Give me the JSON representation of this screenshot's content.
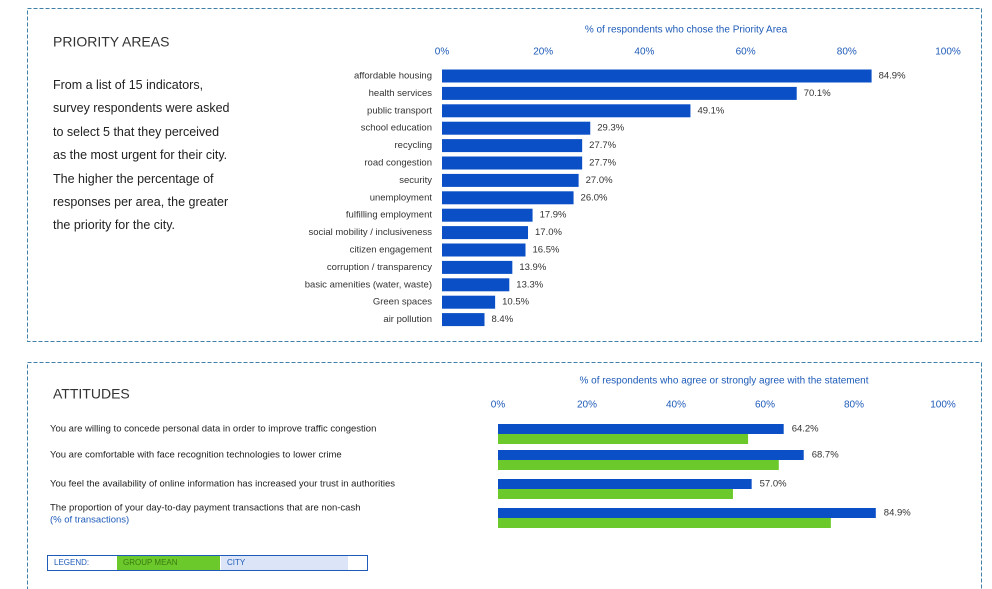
{
  "chart_data": [
    {
      "type": "barh",
      "title": "PRIORITY AREAS",
      "description": "From a list of 15 indicators, survey respondents were asked to select 5 that they perceived as the most urgent for their city. The higher the percentage of responses per area, the greater the priority for the city.",
      "x_label": "% of respondents who chose the Priority Area",
      "categories": [
        "affordable housing",
        "health services",
        "public transport",
        "school education",
        "recycling",
        "road congestion",
        "security",
        "unemployment",
        "fulfilling employment",
        "social mobility / inclusiveness",
        "citizen engagement",
        "corruption / transparency",
        "basic amenities (water, waste)",
        "Green spaces",
        "air pollution"
      ],
      "values": [
        84.9,
        70.1,
        49.1,
        29.3,
        27.7,
        27.7,
        27.0,
        26.0,
        17.9,
        17.0,
        16.5,
        13.9,
        13.3,
        10.5,
        8.4
      ],
      "value_labels": [
        "84.9%",
        "70.1%",
        "49.1%",
        "29.3%",
        "27.7%",
        "27.7%",
        "27.0%",
        "26.0%",
        "17.9%",
        "17.0%",
        "16.5%",
        "13.9%",
        "13.3%",
        "10.5%",
        "8.4%"
      ],
      "color": "#0b4fc6",
      "xlim": [
        0,
        100
      ],
      "xticks": [
        {
          "value": 0,
          "label": "0%"
        },
        {
          "value": 20,
          "label": "20%"
        },
        {
          "value": 40,
          "label": "40%"
        },
        {
          "value": 60,
          "label": "60%"
        },
        {
          "value": 80,
          "label": "80%"
        },
        {
          "value": 100,
          "label": "100%"
        }
      ]
    },
    {
      "type": "barh_grouped",
      "title": "ATTITUDES",
      "x_label": "% of respondents who agree or strongly agree with the statement",
      "categories": [
        "You are willing to concede personal data in order to improve traffic congestion",
        "You are comfortable with face recognition technologies to lower crime",
        "You feel the availability of online information has increased your trust in authorities",
        "The proportion of your day-to-day payment transactions that are non-cash"
      ],
      "category_notes": [
        null,
        null,
        null,
        "(% of transactions)"
      ],
      "series": [
        {
          "name": "CITY",
          "color": "#0b4fc6",
          "values": [
            64.2,
            68.7,
            57.0,
            84.9
          ],
          "value_labels": [
            "64.2%",
            "68.7%",
            "57.0%",
            "84.9%"
          ]
        },
        {
          "name": "GROUP MEAN",
          "color": "#6cc92c",
          "values": [
            56.2,
            63.1,
            52.8,
            74.8
          ]
        }
      ],
      "legend_title": "LEGEND:",
      "xlim": [
        0,
        100
      ],
      "xticks": [
        {
          "value": 0,
          "label": "0%"
        },
        {
          "value": 20,
          "label": "20%"
        },
        {
          "value": 40,
          "label": "40%"
        },
        {
          "value": 60,
          "label": "60%"
        },
        {
          "value": 80,
          "label": "80%"
        },
        {
          "value": 100,
          "label": "100%"
        }
      ]
    }
  ]
}
